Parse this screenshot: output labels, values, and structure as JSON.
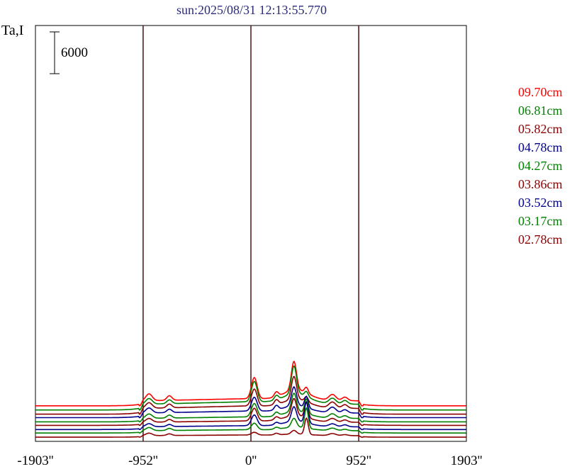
{
  "chart_data": {
    "type": "line",
    "title": "sun:2025/08/31 12:13:55.770",
    "ylabel": "Ta,I",
    "scale_bar": "6000",
    "x_ticks": [
      "-1903''",
      "-952''",
      "0''",
      "952''",
      "1903''"
    ],
    "xlim": [
      -1903,
      1903
    ],
    "vlines": [
      -952,
      0,
      952
    ],
    "series": [
      {
        "name": "09.70cm",
        "color": "#ff0000",
        "baseline": 5000,
        "limb": 1300,
        "core": 5500,
        "p1": 1100,
        "p2": 900,
        "p3": 1500,
        "p4": 1100
      },
      {
        "name": "06.81cm",
        "color": "#008000",
        "baseline": 4400,
        "limb": 1500,
        "core": 5300,
        "p1": 900,
        "p2": 800,
        "p3": 1400,
        "p4": 1100
      },
      {
        "name": "05.82cm",
        "color": "#8b0000",
        "baseline": 3800,
        "limb": 1500,
        "core": 4400,
        "p1": 900,
        "p2": 800,
        "p3": 1500,
        "p4": 1100
      },
      {
        "name": "04.78cm",
        "color": "#00008b",
        "baseline": 3300,
        "limb": 1200,
        "core": 3600,
        "p1": 800,
        "p2": 1800,
        "p3": 1400,
        "p4": 1000
      },
      {
        "name": "04.27cm",
        "color": "#008000",
        "baseline": 2700,
        "limb": 900,
        "core": 3500,
        "p1": 700,
        "p2": 2300,
        "p3": 1100,
        "p4": 800
      },
      {
        "name": "03.86cm",
        "color": "#8b0000",
        "baseline": 2200,
        "limb": 800,
        "core": 3300,
        "p1": 600,
        "p2": 2500,
        "p3": 900,
        "p4": 700
      },
      {
        "name": "03.52cm",
        "color": "#00008b",
        "baseline": 1600,
        "limb": 700,
        "core": 2800,
        "p1": 500,
        "p2": 3300,
        "p3": 700,
        "p4": 600
      },
      {
        "name": "03.17cm",
        "color": "#008000",
        "baseline": 1100,
        "limb": 600,
        "core": 1700,
        "p1": 500,
        "p2": 3200,
        "p3": 600,
        "p4": 400
      },
      {
        "name": "02.78cm",
        "color": "#8b0000",
        "baseline": 500,
        "limb": 400,
        "core": 700,
        "p1": 400,
        "p2": 2600,
        "p3": 500,
        "p4": 300
      }
    ],
    "grid": false,
    "legend_position": "right"
  }
}
